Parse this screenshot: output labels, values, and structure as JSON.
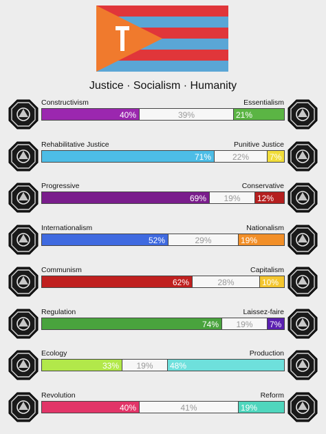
{
  "flag": {
    "stripe_red": "#e0363a",
    "stripe_blue": "#5aa6d6",
    "triangle": "#f07a2d",
    "hammer_icon": "hammer-icon"
  },
  "motto": "Justice · Socialism · Humanity",
  "axes": [
    {
      "left_label": "Constructivism",
      "right_label": "Essentialism",
      "left_pct": 40,
      "mid_pct": 39,
      "right_pct": 21,
      "left_text": "40%",
      "mid_text": "39%",
      "right_text": "21%",
      "left_color": "#9b27af",
      "right_color": "#5bb544",
      "right_text_color": "#ffffff",
      "left_icon": "constructivism-icon",
      "right_icon": "essentialism-icon"
    },
    {
      "left_label": "Rehabilitative Justice",
      "right_label": "Punitive Justice",
      "left_pct": 71,
      "mid_pct": 22,
      "right_pct": 7,
      "left_text": "71%",
      "mid_text": "22%",
      "right_text": "7%",
      "left_color": "#4dbde6",
      "right_color": "#f1dd3a",
      "right_text_color": "#ffffff",
      "left_icon": "handshake-icon",
      "right_icon": "prison-bars-icon"
    },
    {
      "left_label": "Progressive",
      "right_label": "Conservative",
      "left_pct": 69,
      "mid_pct": 19,
      "right_pct": 12,
      "left_text": "69%",
      "mid_text": "19%",
      "right_text": "12%",
      "left_color": "#7a1d8c",
      "right_color": "#b51f1f",
      "right_text_color": "#ffffff",
      "left_icon": "rocket-icon",
      "right_icon": "hourglass-icon"
    },
    {
      "left_label": "Internationalism",
      "right_label": "Nationalism",
      "left_pct": 52,
      "mid_pct": 29,
      "right_pct": 19,
      "left_text": "52%",
      "mid_text": "29%",
      "right_text": "19%",
      "left_color": "#3f6ae0",
      "right_color": "#f28f28",
      "right_text_color": "#ffffff",
      "left_icon": "globe-icon",
      "right_icon": "national-flag-icon"
    },
    {
      "left_label": "Communism",
      "right_label": "Capitalism",
      "left_pct": 62,
      "mid_pct": 28,
      "right_pct": 10,
      "left_text": "62%",
      "mid_text": "28%",
      "right_text": "10%",
      "left_color": "#c0201f",
      "right_color": "#f4c62f",
      "right_text_color": "#ffffff",
      "left_icon": "hammer-sickle-icon",
      "right_icon": "money-bag-icon"
    },
    {
      "left_label": "Regulation",
      "right_label": "Laissez-faire",
      "left_pct": 74,
      "mid_pct": 19,
      "right_pct": 7,
      "left_text": "74%",
      "mid_text": "19%",
      "right_text": "7%",
      "left_color": "#49a33d",
      "right_color": "#5a1fb0",
      "right_text_color": "#ffffff",
      "left_icon": "regulation-icon",
      "right_icon": "birds-icon"
    },
    {
      "left_label": "Ecology",
      "right_label": "Production",
      "left_pct": 33,
      "mid_pct": 19,
      "right_pct": 48,
      "left_text": "33%",
      "mid_text": "19%",
      "right_text": "48%",
      "left_color": "#b2e84a",
      "right_color": "#6ee0dc",
      "right_text_color": "#ffffff",
      "left_icon": "wheat-icon",
      "right_icon": "factory-icon"
    },
    {
      "left_label": "Revolution",
      "right_label": "Reform",
      "left_pct": 40,
      "mid_pct": 41,
      "right_pct": 19,
      "left_text": "40%",
      "mid_text": "41%",
      "right_text": "19%",
      "left_color": "#e23568",
      "right_color": "#4fd6bd",
      "right_text_color": "#ffffff",
      "left_icon": "revolution-icon",
      "right_icon": "ballot-icon"
    }
  ]
}
